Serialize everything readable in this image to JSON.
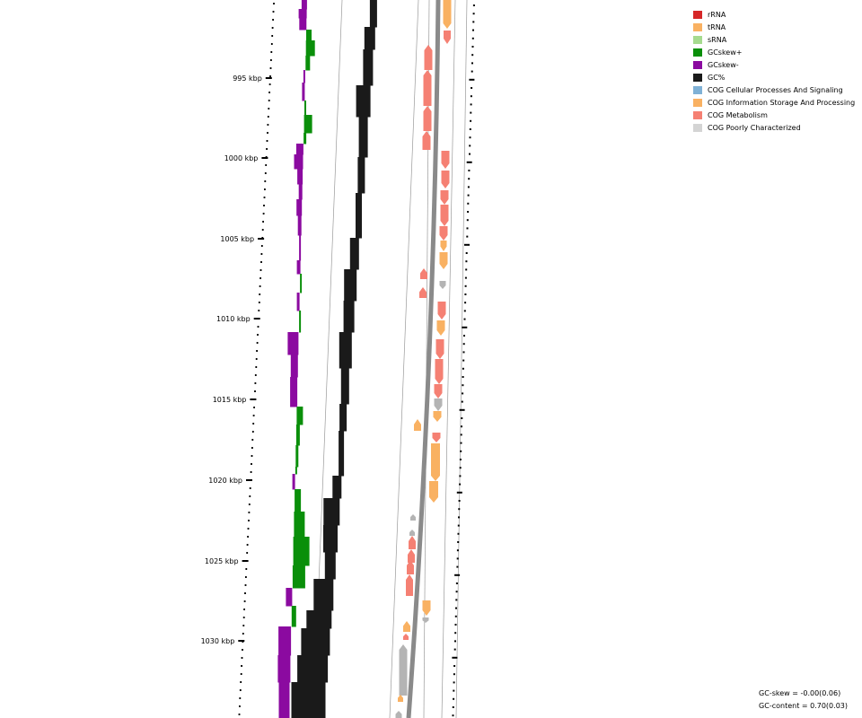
{
  "map": {
    "ticks": [
      "995 kbp",
      "1000 kbp",
      "1005 kbp",
      "1010 kbp",
      "1015 kbp",
      "1020 kbp",
      "1025 kbp",
      "1030 kbp"
    ]
  },
  "legend": [
    {
      "label": "rRNA",
      "color": "#d62728"
    },
    {
      "label": "tRNA",
      "color": "#f9b162"
    },
    {
      "label": "sRNA",
      "color": "#a6db8f"
    },
    {
      "label": "GCskew+",
      "color": "#0a8f0a"
    },
    {
      "label": "GCskew-",
      "color": "#8b0aa0"
    },
    {
      "label": "GC%",
      "color": "#1a1a1a"
    },
    {
      "label": "COG Cellular Processes And Signaling",
      "color": "#7fb1d6"
    },
    {
      "label": "COG Information Storage And Processing",
      "color": "#f9b162"
    },
    {
      "label": "COG Metabolism",
      "color": "#f58073"
    },
    {
      "label": "COG Poorly Characterized",
      "color": "#d4d4d4"
    }
  ],
  "stats": {
    "gc_skew": "GC-skew = -0.00(0.06)",
    "gc_content": "GC-content = 0.70(0.03)"
  }
}
